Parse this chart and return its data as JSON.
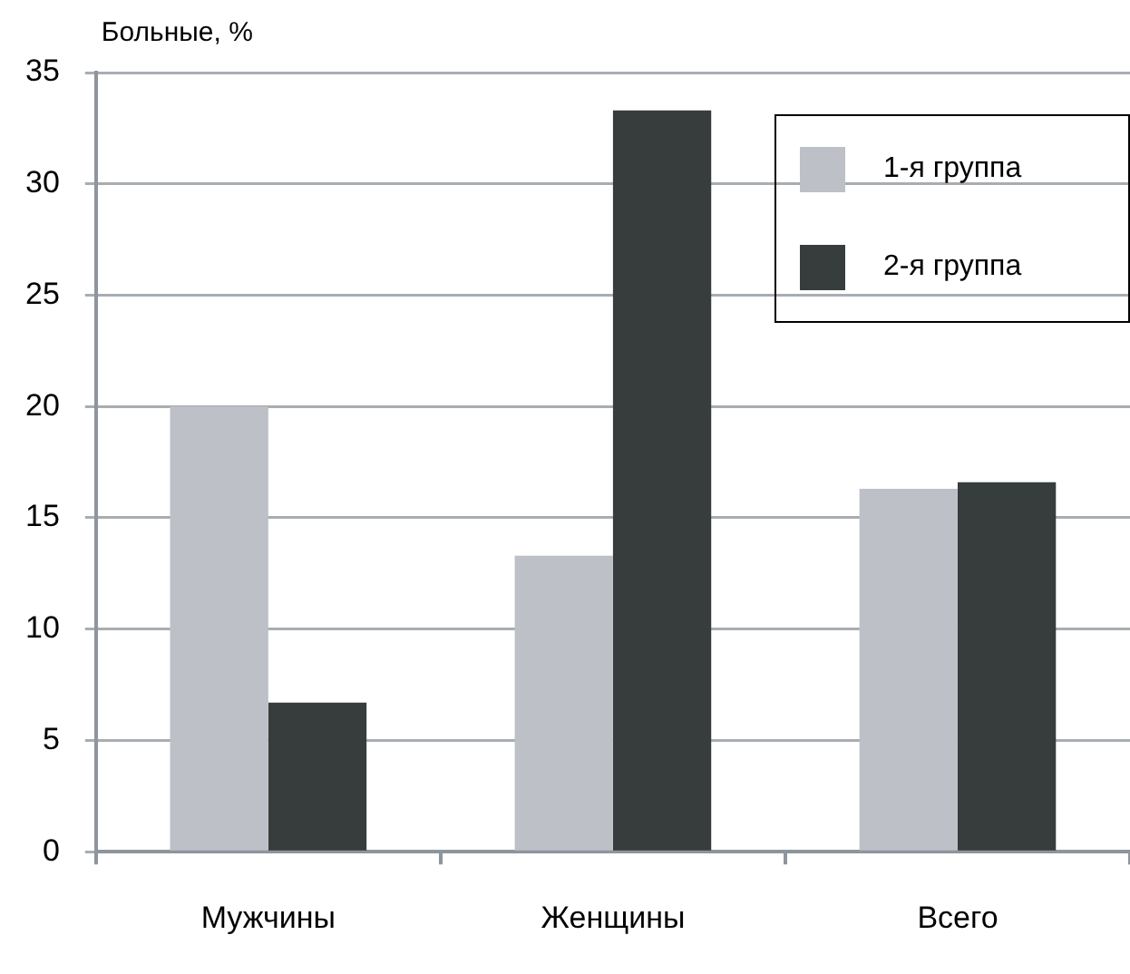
{
  "chart_data": {
    "type": "bar",
    "ylabel": "Больные, %",
    "categories": [
      "Мужчины",
      "Женщины",
      "Всего"
    ],
    "series": [
      {
        "name": "1-я группа",
        "color": "#bdc0c7",
        "values": [
          20,
          13.3,
          16.3
        ]
      },
      {
        "name": "2-я группа",
        "color": "#363d3c",
        "values": [
          6.7,
          33.3,
          16.6
        ]
      }
    ],
    "ylim": [
      0,
      35
    ],
    "yticks": [
      0,
      5,
      10,
      15,
      20,
      25,
      30,
      35
    ],
    "grid": "y",
    "legend": "top right"
  }
}
